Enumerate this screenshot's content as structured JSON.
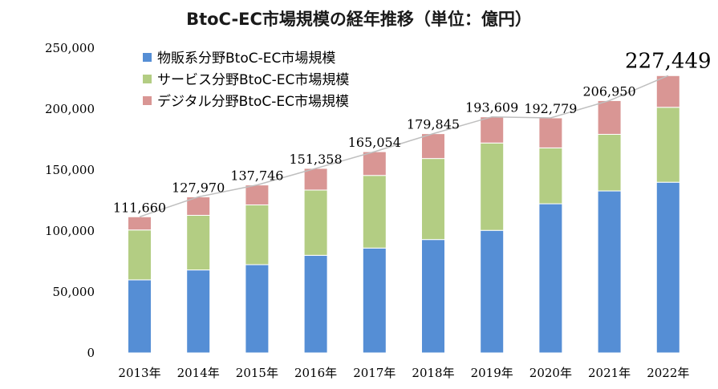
{
  "chart_data": {
    "type": "bar",
    "stacked": true,
    "title": "BtoC-EC市場規模の経年推移（単位：億円）",
    "xlabel": "",
    "ylabel": "",
    "ylim": [
      0,
      250000
    ],
    "yticks": [
      "0",
      "50,000",
      "100,000",
      "150,000",
      "200,000",
      "250,000"
    ],
    "categories": [
      "2013年",
      "2014年",
      "2015年",
      "2016年",
      "2017年",
      "2018年",
      "2019年",
      "2020年",
      "2021年",
      "2022年"
    ],
    "series": [
      {
        "name": "物販系分野BtoC-EC市場規模",
        "color": "#558ED5",
        "values": [
          59931,
          68043,
          72398,
          80043,
          86008,
          92992,
          100515,
          122333,
          132865,
          139997
        ]
      },
      {
        "name": "サービス分野BtoC-EC市場規模",
        "color": "#B3CD83",
        "values": [
          40920,
          44816,
          49014,
          53532,
          59568,
          66471,
          71672,
          45832,
          46424,
          61477
        ]
      },
      {
        "name": "デジタル分野BtoC-EC市場規模",
        "color": "#D99694",
        "values": [
          10809,
          15111,
          16334,
          17783,
          19478,
          20382,
          21422,
          24614,
          27661,
          25974
        ]
      }
    ],
    "totals": [
      111660,
      127970,
      137746,
      151358,
      165054,
      179845,
      193609,
      192779,
      206950,
      227449
    ],
    "total_labels": [
      "111,660",
      "127,970",
      "137,746",
      "151,358",
      "165,054",
      "179,845",
      "193,609",
      "192,779",
      "206,950",
      "227,449"
    ],
    "legend_position": "top-left",
    "grid": false,
    "total_line_color": "#BFBFBF"
  }
}
